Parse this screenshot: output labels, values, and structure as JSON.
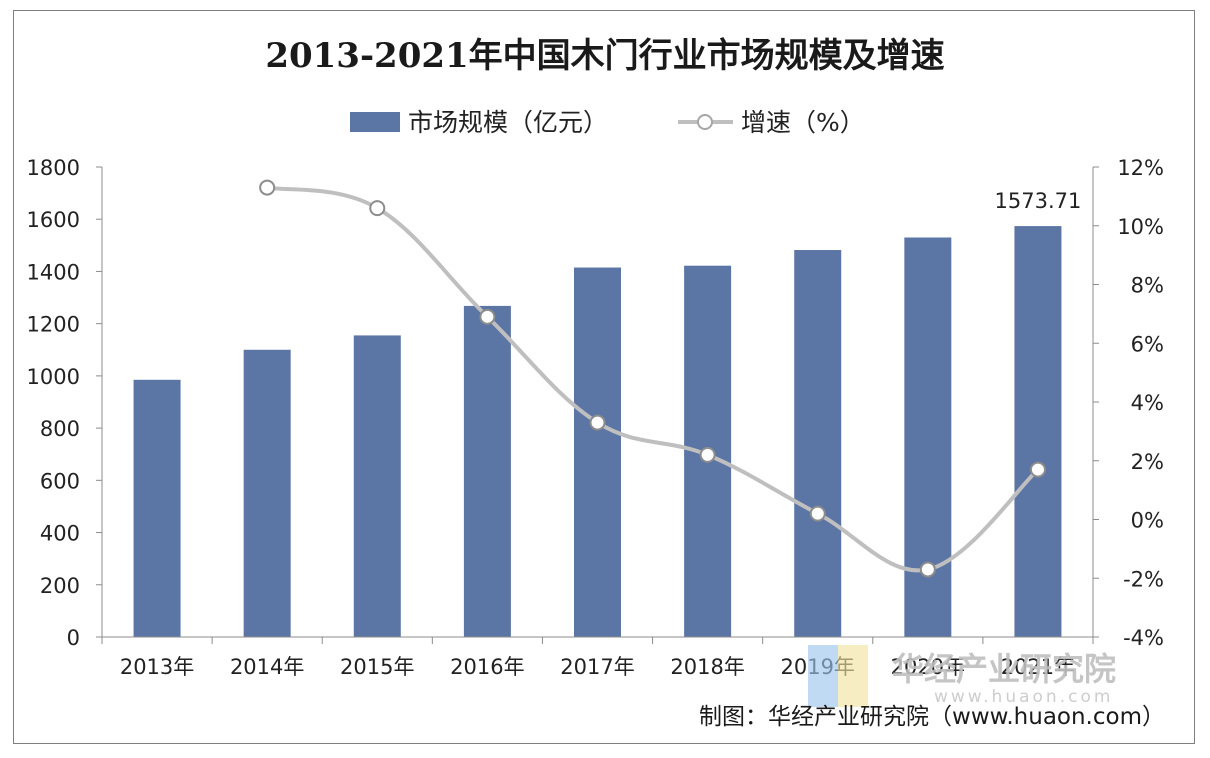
{
  "chart_data": {
    "type": "bar+line",
    "title": "2013-2021年中国木门行业市场规模及增速",
    "categories": [
      "2013年",
      "2014年",
      "2015年",
      "2016年",
      "2017年",
      "2018年",
      "2019年",
      "2020年",
      "2021年"
    ],
    "series": [
      {
        "name": "市场规模（亿元）",
        "type": "bar",
        "axis": "left",
        "color": "#5b75a5",
        "values": [
          985,
          1100,
          1155,
          1268,
          1415,
          1422,
          1482,
          1530,
          1573.71
        ]
      },
      {
        "name": "增速（%）",
        "type": "line",
        "axis": "right",
        "color": "#bfbfbf",
        "values": [
          null,
          11.3,
          10.6,
          6.9,
          3.3,
          2.2,
          0.2,
          -1.7,
          1.7
        ]
      }
    ],
    "data_labels": [
      {
        "series": 0,
        "index": 8,
        "text": "1573.71"
      }
    ],
    "y_left": {
      "min": 0,
      "max": 1800,
      "step": 200,
      "ticks": [
        "0",
        "200",
        "400",
        "600",
        "800",
        "1000",
        "1200",
        "1400",
        "1600",
        "1800"
      ]
    },
    "y_right": {
      "min": -4,
      "max": 12,
      "step": 2,
      "ticks": [
        "-4%",
        "-2%",
        "0%",
        "2%",
        "4%",
        "6%",
        "8%",
        "10%",
        "12%"
      ]
    },
    "grid": false,
    "legend_position": "top"
  },
  "legend": {
    "bar_label": "市场规模（亿元）",
    "line_label": "增速（%）"
  },
  "watermark": {
    "name": "华经产业研究院",
    "site": "www.huaon.com"
  },
  "source": "制图：华经产业研究院（www.huaon.com）"
}
